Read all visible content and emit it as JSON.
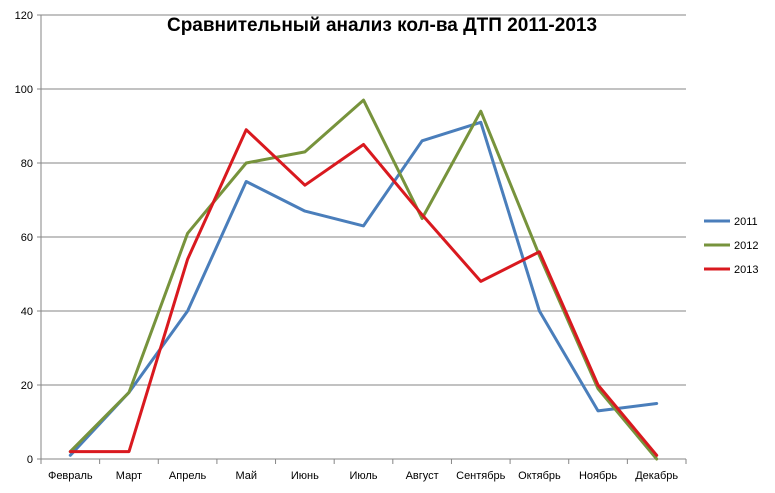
{
  "chart_data": {
    "type": "line",
    "title": "Сравнительный анализ кол-ва ДТП 2011-2013",
    "xlabel": "",
    "ylabel": "",
    "ylim": [
      0,
      120
    ],
    "yticks": [
      0,
      20,
      40,
      60,
      80,
      100,
      120
    ],
    "grid": "horizontal",
    "legend_position": "right",
    "categories": [
      "Февраль",
      "Март",
      "Апрель",
      "Май",
      "Июнь",
      "Июль",
      "Август",
      "Сентябрь",
      "Октябрь",
      "Ноябрь",
      "Декабрь"
    ],
    "series": [
      {
        "name": "2011",
        "color": "#4a7ebb",
        "values": [
          1,
          18,
          40,
          75,
          67,
          63,
          86,
          91,
          40,
          13,
          15
        ]
      },
      {
        "name": "2012",
        "color": "#77933c",
        "values": [
          2,
          18,
          61,
          80,
          83,
          97,
          65,
          94,
          55,
          19,
          0
        ]
      },
      {
        "name": "2013",
        "color": "#d9191f",
        "values": [
          2,
          2,
          54,
          89,
          74,
          85,
          66,
          48,
          56,
          20,
          1
        ]
      }
    ]
  }
}
